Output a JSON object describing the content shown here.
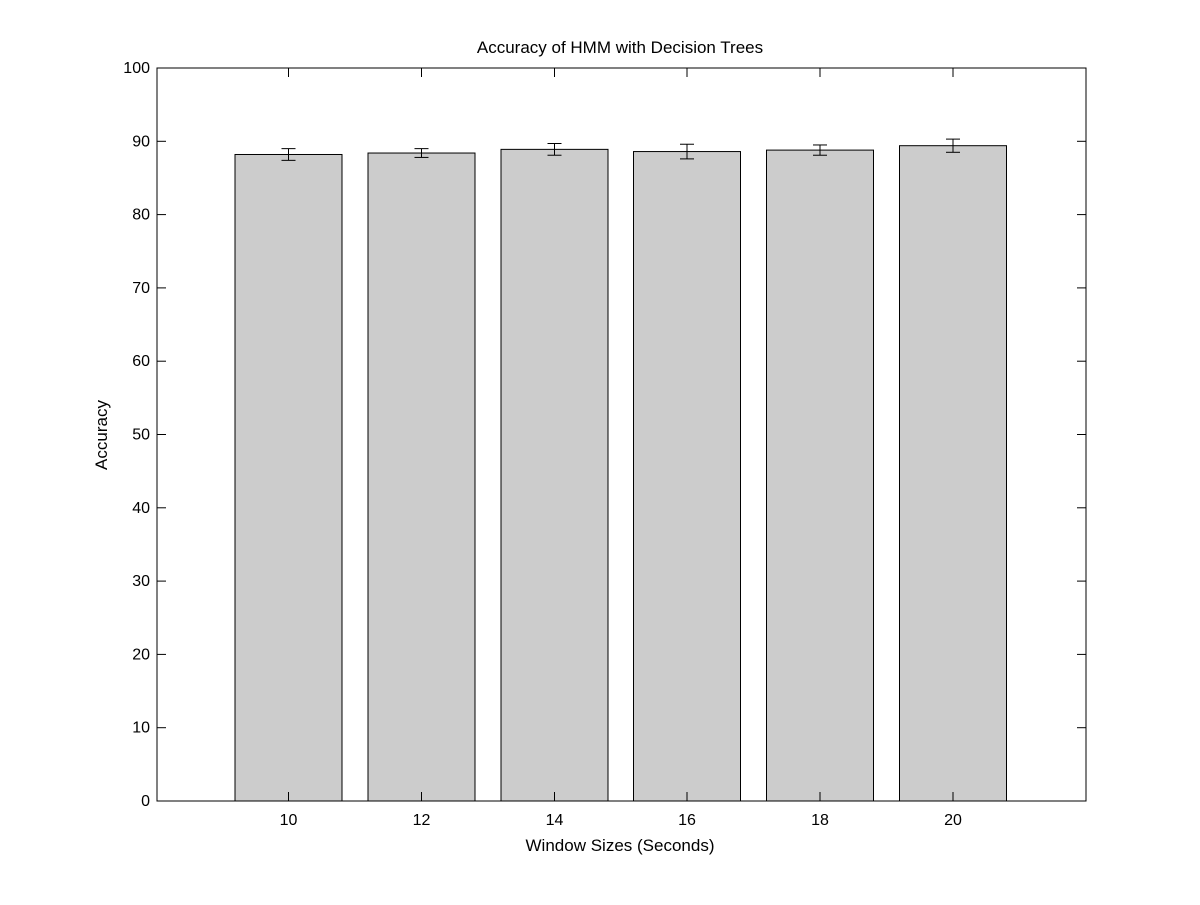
{
  "chart_data": {
    "type": "bar",
    "title": "Accuracy of HMM with Decision Trees",
    "xlabel": "Window Sizes (Seconds)",
    "ylabel": "Accuracy",
    "categories": [
      "10",
      "12",
      "14",
      "16",
      "18",
      "20"
    ],
    "values": [
      88.2,
      88.4,
      88.9,
      88.6,
      88.8,
      89.4
    ],
    "error_low": [
      0.8,
      0.6,
      0.8,
      1.0,
      0.7,
      0.9
    ],
    "error_high": [
      0.8,
      0.6,
      0.8,
      1.0,
      0.7,
      0.9
    ],
    "ylim": [
      0,
      100
    ],
    "yticks": [
      "0",
      "10",
      "20",
      "30",
      "40",
      "50",
      "60",
      "70",
      "80",
      "90",
      "100"
    ],
    "grid": false,
    "legend": "none",
    "bar_color": "#cccccc"
  }
}
